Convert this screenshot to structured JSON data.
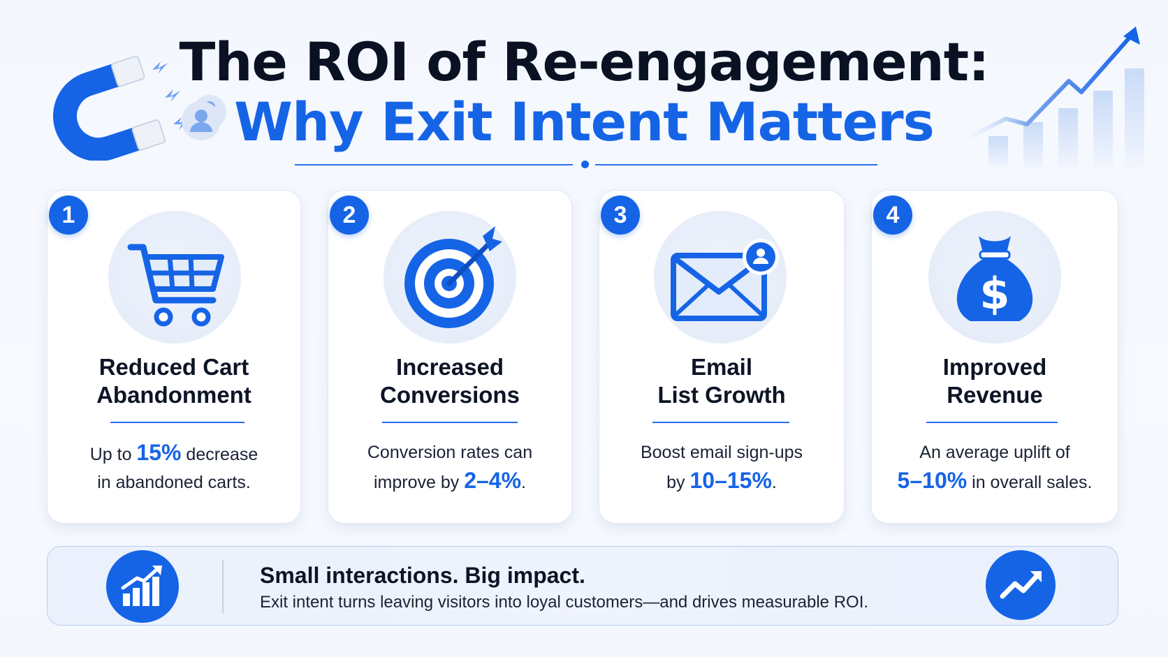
{
  "header": {
    "title_line1": "The ROI of Re-engagement:",
    "title_line2": "Why Exit Intent Matters"
  },
  "cards": [
    {
      "number": "1",
      "icon": "shopping-cart-icon",
      "title_line1": "Reduced Cart",
      "title_line2": "Abandonment",
      "desc_before": "Up to ",
      "desc_highlight": "15%",
      "desc_after": " decrease",
      "desc_line2": "in abandoned carts."
    },
    {
      "number": "2",
      "icon": "target-icon",
      "title_line1": "Increased",
      "title_line2": "Conversions",
      "desc_line1": "Conversion rates can",
      "desc_before": "improve by ",
      "desc_highlight": "2–4%",
      "desc_after": "."
    },
    {
      "number": "3",
      "icon": "email-user-icon",
      "title_line1": "Email",
      "title_line2": "List Growth",
      "desc_line1": "Boost email sign-ups",
      "desc_before": "by ",
      "desc_highlight": "10–15%",
      "desc_after": "."
    },
    {
      "number": "4",
      "icon": "money-bag-icon",
      "title_line1": "Improved",
      "title_line2": "Revenue",
      "desc_line1": "An average uplift of",
      "desc_highlight": "5–10%",
      "desc_after": " in overall sales."
    }
  ],
  "banner": {
    "headline": "Small interactions. Big impact.",
    "subtext": "Exit intent turns leaving visitors into loyal customers—and drives measurable ROI."
  },
  "colors": {
    "accent": "#1664e6",
    "title_dark": "#0a1122",
    "icon_bg": "#e6edf9"
  }
}
